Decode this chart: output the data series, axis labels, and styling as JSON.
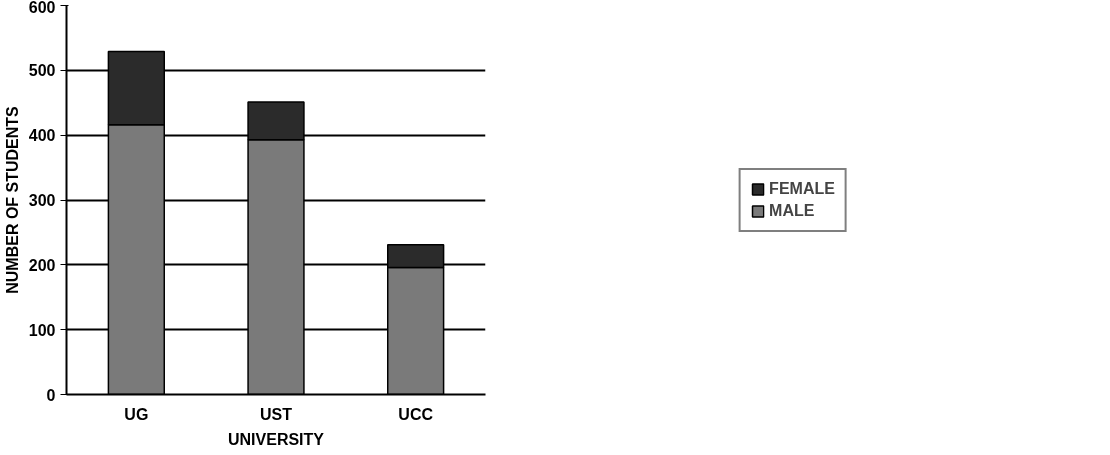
{
  "chart_data": {
    "type": "bar",
    "stacked": true,
    "xlabel": "UNIVERSITY",
    "ylabel": "NUMBER OF STUDENTS",
    "categories": [
      "UG",
      "UST",
      "UCC"
    ],
    "series": [
      {
        "name": "MALE",
        "color": "#7a7a7a",
        "values": [
          416,
          393,
          196
        ]
      },
      {
        "name": "FEMALE",
        "color": "#2b2b2b",
        "values": [
          113,
          58,
          35
        ]
      }
    ],
    "ylim": [
      0,
      600
    ],
    "yticks": [
      0,
      100,
      200,
      300,
      400,
      500,
      600
    ],
    "grid": "y",
    "legend": "right"
  }
}
